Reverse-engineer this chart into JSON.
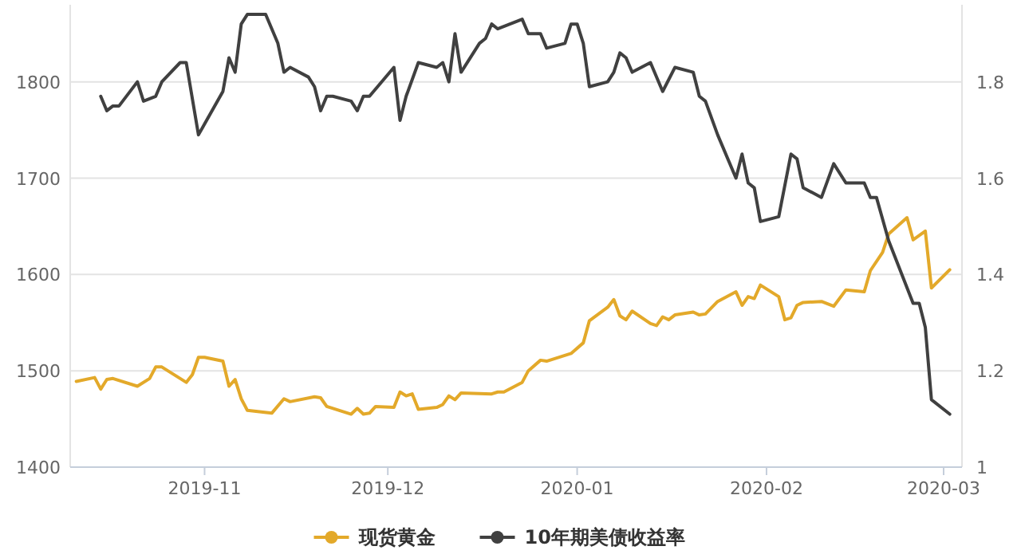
{
  "chart_data": {
    "type": "line",
    "xlim": [
      "2019-10-10",
      "2020-03-04"
    ],
    "xticks": [
      {
        "value": "2019-11-01",
        "label": "2019-11"
      },
      {
        "value": "2019-12-01",
        "label": "2019-12"
      },
      {
        "value": "2020-01-01",
        "label": "2020-01"
      },
      {
        "value": "2020-02-01",
        "label": "2020-02"
      },
      {
        "value": "2020-03-01",
        "label": "2020-03"
      }
    ],
    "ylim": [
      1400,
      1880
    ],
    "yticks": [
      1400,
      1500,
      1600,
      1700,
      1800
    ],
    "y2lim": [
      1,
      1.96
    ],
    "y2ticks": [
      1,
      1.2,
      1.4,
      1.6,
      1.8
    ],
    "grid": "y",
    "legend": "bottom",
    "series": [
      {
        "name": "现货黄金",
        "color": "#e3a92a",
        "x": [
          "2019-10-11",
          "2019-10-14",
          "2019-10-15",
          "2019-10-16",
          "2019-10-17",
          "2019-10-21",
          "2019-10-23",
          "2019-10-24",
          "2019-10-25",
          "2019-10-29",
          "2019-10-30",
          "2019-10-31",
          "2019-11-01",
          "2019-11-04",
          "2019-11-05",
          "2019-11-06",
          "2019-11-07",
          "2019-11-08",
          "2019-11-12",
          "2019-11-14",
          "2019-11-15",
          "2019-11-19",
          "2019-11-20",
          "2019-11-21",
          "2019-11-25",
          "2019-11-26",
          "2019-11-27",
          "2019-11-28",
          "2019-11-29",
          "2019-12-02",
          "2019-12-03",
          "2019-12-04",
          "2019-12-05",
          "2019-12-06",
          "2019-12-09",
          "2019-12-10",
          "2019-12-11",
          "2019-12-12",
          "2019-12-13",
          "2019-12-18",
          "2019-12-19",
          "2019-12-20",
          "2019-12-23",
          "2019-12-24",
          "2019-12-26",
          "2019-12-27",
          "2019-12-31",
          "2020-01-02",
          "2020-01-03",
          "2020-01-06",
          "2020-01-07",
          "2020-01-08",
          "2020-01-09",
          "2020-01-10",
          "2020-01-13",
          "2020-01-14",
          "2020-01-15",
          "2020-01-16",
          "2020-01-17",
          "2020-01-20",
          "2020-01-21",
          "2020-01-22",
          "2020-01-24",
          "2020-01-27",
          "2020-01-28",
          "2020-01-29",
          "2020-01-30",
          "2020-01-31",
          "2020-02-03",
          "2020-02-04",
          "2020-02-05",
          "2020-02-06",
          "2020-02-07",
          "2020-02-10",
          "2020-02-12",
          "2020-02-14",
          "2020-02-17",
          "2020-02-18",
          "2020-02-20",
          "2020-02-21",
          "2020-02-24",
          "2020-02-25",
          "2020-02-27",
          "2020-02-28",
          "2020-03-02"
        ],
        "values": [
          1489,
          1493,
          1481,
          1491,
          1492,
          1484,
          1492,
          1504,
          1504,
          1488,
          1496,
          1514,
          1514,
          1510,
          1484,
          1491,
          1471,
          1459,
          1456,
          1471,
          1468,
          1473,
          1472,
          1463,
          1455,
          1461,
          1455,
          1456,
          1463,
          1462,
          1478,
          1474,
          1476,
          1460,
          1462,
          1465,
          1474,
          1470,
          1477,
          1476,
          1478,
          1478,
          1488,
          1500,
          1511,
          1510,
          1518,
          1529,
          1552,
          1566,
          1574,
          1557,
          1553,
          1562,
          1549,
          1547,
          1556,
          1553,
          1558,
          1561,
          1558,
          1559,
          1572,
          1582,
          1568,
          1577,
          1575,
          1589,
          1577,
          1553,
          1555,
          1568,
          1571,
          1572,
          1567,
          1584,
          1582,
          1604,
          1623,
          1642,
          1659,
          1636,
          1645,
          1586,
          1605
        ]
      },
      {
        "name": "10年期美债收益率",
        "color": "#404040",
        "axis": "y2",
        "x": [
          "2019-10-15",
          "2019-10-16",
          "2019-10-17",
          "2019-10-18",
          "2019-10-21",
          "2019-10-22",
          "2019-10-24",
          "2019-10-25",
          "2019-10-28",
          "2019-10-29",
          "2019-10-31",
          "2019-11-04",
          "2019-11-05",
          "2019-11-06",
          "2019-11-07",
          "2019-11-08",
          "2019-11-11",
          "2019-11-13",
          "2019-11-14",
          "2019-11-15",
          "2019-11-18",
          "2019-11-19",
          "2019-11-20",
          "2019-11-21",
          "2019-11-22",
          "2019-11-25",
          "2019-11-26",
          "2019-11-27",
          "2019-11-28",
          "2019-12-02",
          "2019-12-03",
          "2019-12-04",
          "2019-12-06",
          "2019-12-09",
          "2019-12-10",
          "2019-12-11",
          "2019-12-12",
          "2019-12-13",
          "2019-12-16",
          "2019-12-17",
          "2019-12-18",
          "2019-12-19",
          "2019-12-23",
          "2019-12-24",
          "2019-12-26",
          "2019-12-27",
          "2019-12-30",
          "2019-12-31",
          "2020-01-01",
          "2020-01-02",
          "2020-01-03",
          "2020-01-06",
          "2020-01-07",
          "2020-01-08",
          "2020-01-09",
          "2020-01-10",
          "2020-01-13",
          "2020-01-15",
          "2020-01-17",
          "2020-01-20",
          "2020-01-21",
          "2020-01-22",
          "2020-01-24",
          "2020-01-27",
          "2020-01-28",
          "2020-01-29",
          "2020-01-30",
          "2020-01-31",
          "2020-02-03",
          "2020-02-05",
          "2020-02-06",
          "2020-02-07",
          "2020-02-10",
          "2020-02-12",
          "2020-02-14",
          "2020-02-17",
          "2020-02-18",
          "2020-02-19",
          "2020-02-21",
          "2020-02-25",
          "2020-02-26",
          "2020-02-27",
          "2020-02-28",
          "2020-03-02"
        ],
        "values": [
          1.77,
          1.74,
          1.75,
          1.75,
          1.8,
          1.76,
          1.77,
          1.8,
          1.84,
          1.84,
          1.69,
          1.78,
          1.85,
          1.82,
          1.92,
          1.94,
          1.94,
          1.88,
          1.82,
          1.83,
          1.81,
          1.79,
          1.74,
          1.77,
          1.77,
          1.76,
          1.74,
          1.77,
          1.77,
          1.83,
          1.72,
          1.77,
          1.84,
          1.83,
          1.84,
          1.8,
          1.9,
          1.82,
          1.88,
          1.89,
          1.92,
          1.91,
          1.93,
          1.9,
          1.9,
          1.87,
          1.88,
          1.92,
          1.92,
          1.88,
          1.79,
          1.8,
          1.82,
          1.86,
          1.85,
          1.82,
          1.84,
          1.78,
          1.83,
          1.82,
          1.77,
          1.76,
          1.69,
          1.6,
          1.65,
          1.59,
          1.58,
          1.51,
          1.52,
          1.65,
          1.64,
          1.58,
          1.56,
          1.63,
          1.59,
          1.59,
          1.56,
          1.56,
          1.47,
          1.34,
          1.34,
          1.29,
          1.14,
          1.11
        ]
      }
    ]
  }
}
